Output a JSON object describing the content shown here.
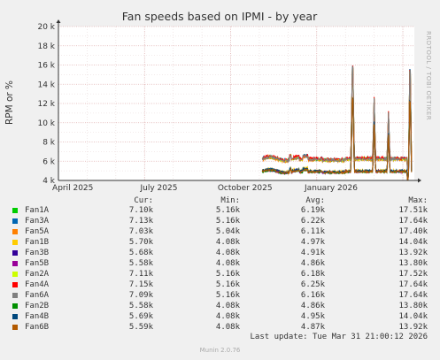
{
  "chart_data": {
    "type": "line",
    "title": "Fan speeds based on IPMI - by year",
    "ylabel": "RPM or %",
    "ylim": [
      4000,
      20000
    ],
    "y_ticks": [
      "4 k",
      "6 k",
      "8 k",
      "10 k",
      "12 k",
      "14 k",
      "16 k",
      "18 k",
      "20 k"
    ],
    "x_ticks": [
      "April 2025",
      "July 2025",
      "October 2025",
      "January 2026"
    ],
    "grid": true,
    "x_range_months": [
      0,
      12.4
    ],
    "x_tick_positions_months": [
      0.5,
      3.5,
      6.5,
      9.5
    ],
    "data_start_month": 7.1,
    "series": [
      {
        "name": "Fan1A",
        "color": "#00cc00",
        "cur": "7.10k",
        "min": "5.16k",
        "avg": "6.19k",
        "max": "17.51k",
        "group": "high"
      },
      {
        "name": "Fan3A",
        "color": "#0066b3",
        "cur": "7.13k",
        "min": "5.16k",
        "avg": "6.22k",
        "max": "17.64k",
        "group": "high"
      },
      {
        "name": "Fan5A",
        "color": "#ff8000",
        "cur": "7.03k",
        "min": "5.04k",
        "avg": "6.11k",
        "max": "17.40k",
        "group": "high"
      },
      {
        "name": "Fan1B",
        "color": "#ffcc00",
        "cur": "5.70k",
        "min": "4.08k",
        "avg": "4.97k",
        "max": "14.04k",
        "group": "low"
      },
      {
        "name": "Fan3B",
        "color": "#330099",
        "cur": "5.68k",
        "min": "4.08k",
        "avg": "4.91k",
        "max": "13.92k",
        "group": "low"
      },
      {
        "name": "Fan5B",
        "color": "#990099",
        "cur": "5.58k",
        "min": "4.08k",
        "avg": "4.86k",
        "max": "13.80k",
        "group": "low"
      },
      {
        "name": "Fan2A",
        "color": "#ccff00",
        "cur": "7.11k",
        "min": "5.16k",
        "avg": "6.18k",
        "max": "17.52k",
        "group": "high"
      },
      {
        "name": "Fan4A",
        "color": "#ff0000",
        "cur": "7.15k",
        "min": "5.16k",
        "avg": "6.25k",
        "max": "17.64k",
        "group": "high"
      },
      {
        "name": "Fan6A",
        "color": "#808080",
        "cur": "7.09k",
        "min": "5.16k",
        "avg": "6.16k",
        "max": "17.64k",
        "group": "high"
      },
      {
        "name": "Fan2B",
        "color": "#008f00",
        "cur": "5.58k",
        "min": "4.08k",
        "avg": "4.86k",
        "max": "13.80k",
        "group": "low"
      },
      {
        "name": "Fan4B",
        "color": "#00487d",
        "cur": "5.69k",
        "min": "4.08k",
        "avg": "4.95k",
        "max": "14.04k",
        "group": "low"
      },
      {
        "name": "Fan6B",
        "color": "#b35a00",
        "cur": "5.59k",
        "min": "4.08k",
        "avg": "4.87k",
        "max": "13.92k",
        "group": "low"
      }
    ]
  },
  "legend_headers": {
    "cur": "Cur:",
    "min": "Min:",
    "avg": "Avg:",
    "max": "Max:"
  },
  "side_text": "RRDTOOL / TOBI OETIKER",
  "last_update": "Last update: Tue Mar 31 21:00:12 2026",
  "footer": "Munin 2.0.76"
}
